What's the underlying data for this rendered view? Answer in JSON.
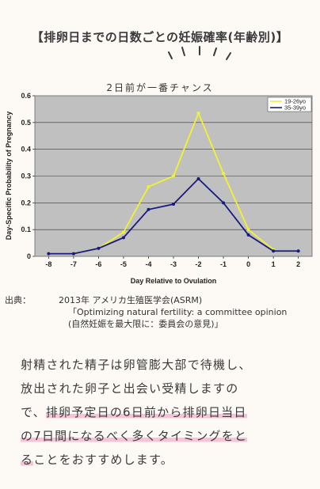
{
  "title": "【排卵日までの日数ごとの妊娠確率(年齢別)】",
  "annotation": "2日前が一番チャンス",
  "chart_data": {
    "type": "line",
    "x": [
      -8,
      -7,
      -6,
      -5,
      -4,
      -3,
      -2,
      -1,
      0,
      1,
      2
    ],
    "x_tick_labels": [
      "-8",
      "-7",
      "-6",
      "-5",
      "-4",
      "-3",
      "-2",
      "-1",
      "0",
      "1",
      "2"
    ],
    "series": [
      {
        "name": "19-26yo",
        "color": "#f2f230",
        "values": [
          null,
          0.01,
          0.03,
          0.09,
          0.26,
          0.3,
          0.535,
          0.31,
          0.1,
          0.025,
          null
        ]
      },
      {
        "name": "35-39yo",
        "color": "#1a1a7e",
        "values": [
          0.01,
          0.01,
          0.03,
          0.07,
          0.175,
          0.195,
          0.29,
          0.2,
          0.08,
          0.02,
          0.02
        ]
      }
    ],
    "xlabel": "Day Relative to Ovulation",
    "ylabel": "Day-Specific Probability of Pregnancy",
    "ylim": [
      0,
      0.6
    ],
    "y_ticks": [
      0,
      0.1,
      0.2,
      0.3,
      0.4,
      0.5,
      0.6
    ],
    "y_tick_labels": [
      "0",
      "0.1",
      "0.2",
      "0.3",
      "0.4",
      "0.5",
      "0.6"
    ],
    "grid": true,
    "background_color": "#c0c0c0",
    "legend_position": "top-right"
  },
  "source": {
    "label": "出典：",
    "line1": "2013年 アメリカ生殖医学会(ASRM)",
    "line2": "「Optimizing natural fertility: a committee opinion",
    "line3": "(自然妊娠を最大限に：委員会の意見)」"
  },
  "body": {
    "line1": "射精された精子は卵管膨大部で待機し、",
    "line2": "放出された卵子と出会い受精しますの",
    "line3_plain": "で、",
    "line3_highlight": "排卵予定日の6日前から排卵日当日",
    "line4_highlight": "の7日間になるべく多くタイミングをと",
    "line5_highlight": "る",
    "line5_plain": "ことをおすすめします。"
  }
}
